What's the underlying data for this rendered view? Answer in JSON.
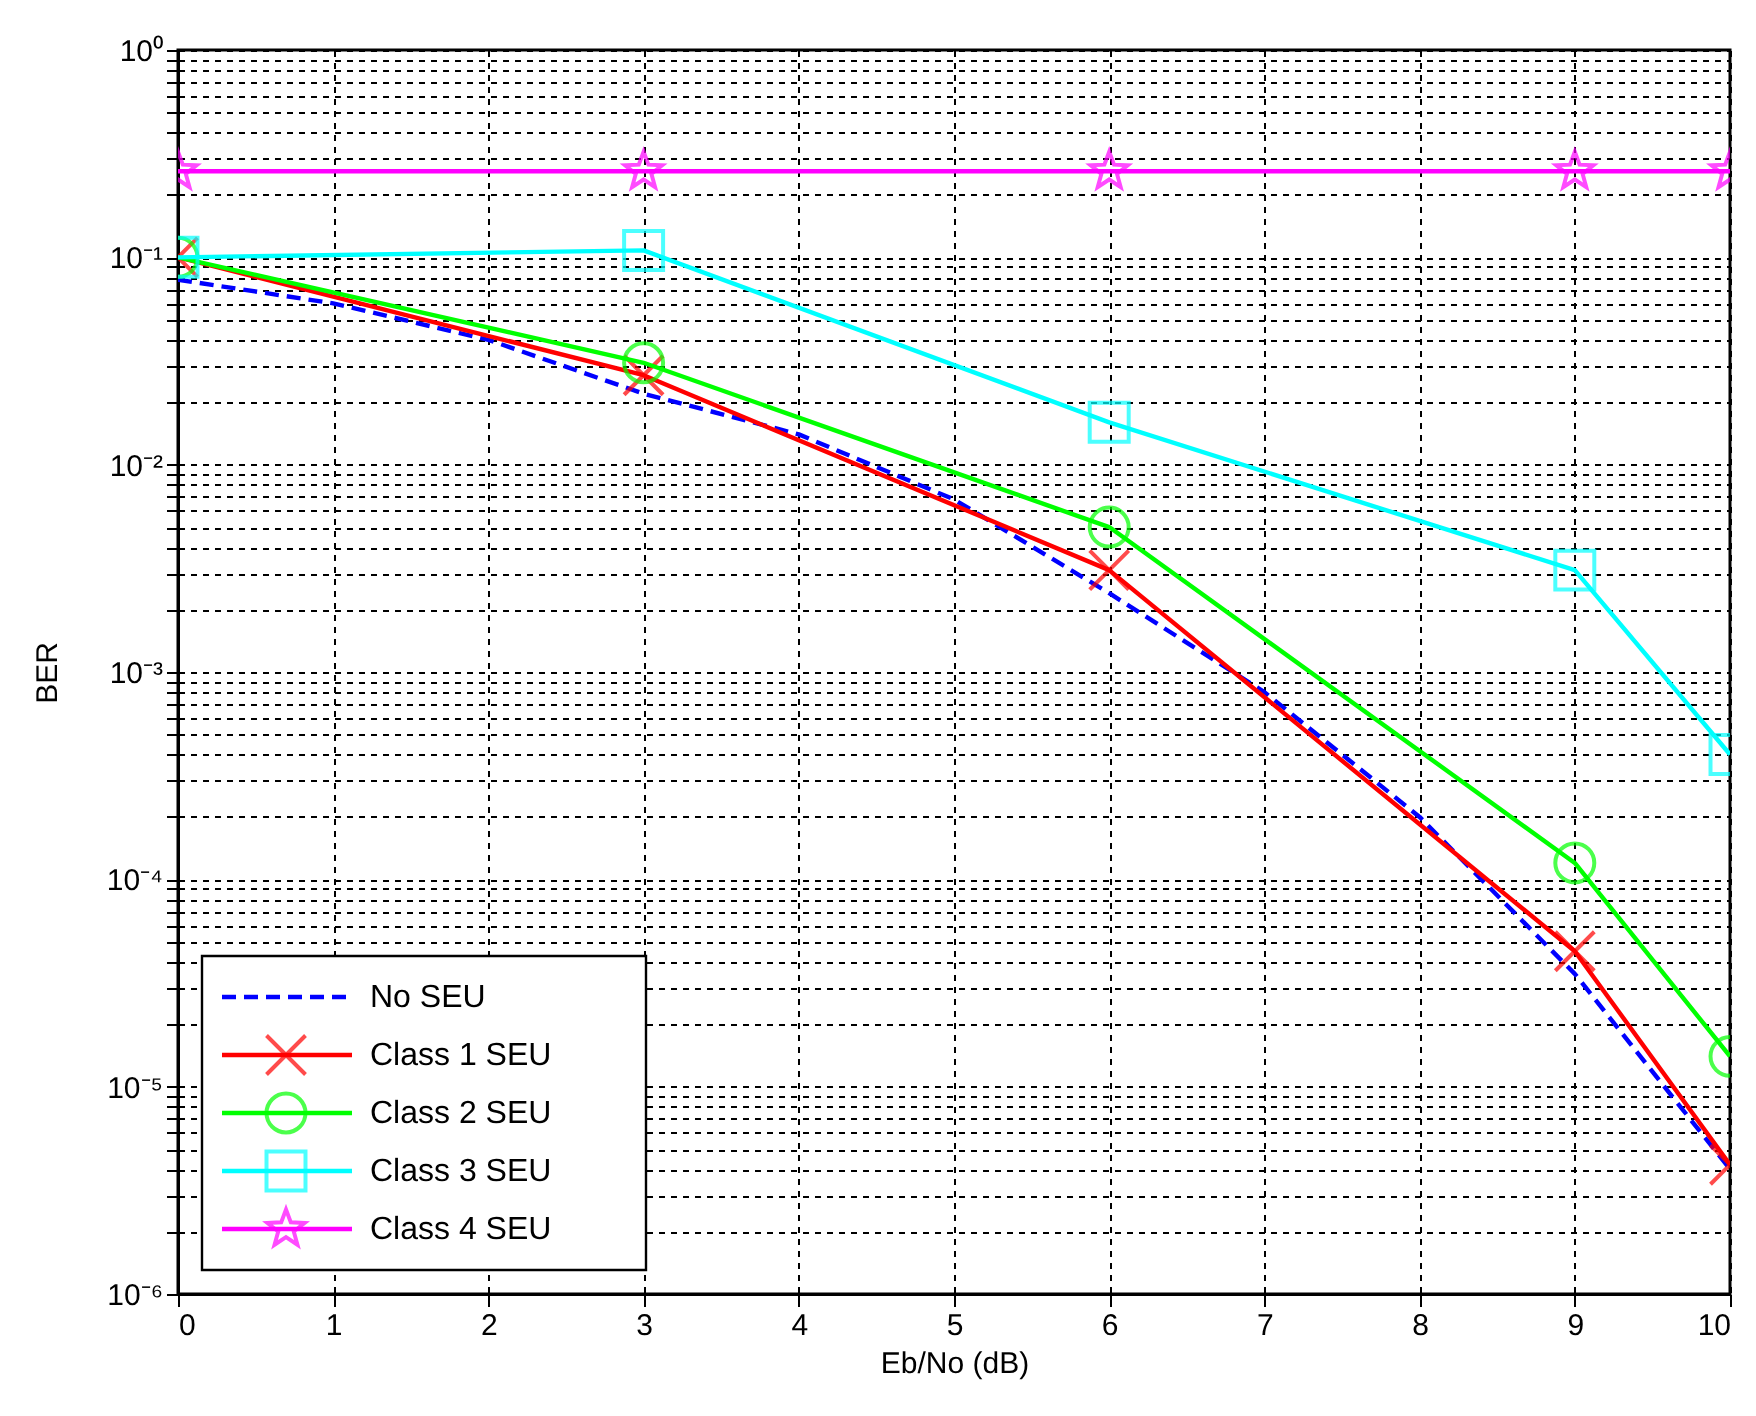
{
  "chart_data": {
    "type": "line",
    "xlabel": "Eb/No (dB)",
    "ylabel": "BER",
    "log": "y",
    "grid": true,
    "legend": "bottom left",
    "xlim": [
      0,
      10
    ],
    "xticks": [
      0,
      1,
      2,
      3,
      4,
      5,
      6,
      7,
      8,
      9,
      10
    ],
    "ylim": [
      1e-06,
      1
    ],
    "yticks": [
      {
        "value": 1e-06,
        "label": "10⁻⁶"
      },
      {
        "value": 2e-06,
        "label": null
      },
      {
        "value": 3e-06,
        "label": null
      },
      {
        "value": 4e-06,
        "label": null
      },
      {
        "value": 5e-06,
        "label": null
      },
      {
        "value": 6e-06,
        "label": null
      },
      {
        "value": 7e-06,
        "label": null
      },
      {
        "value": 8e-06,
        "label": null
      },
      {
        "value": 9e-06,
        "label": null
      },
      {
        "value": 1e-05,
        "label": "10⁻⁵"
      },
      {
        "value": 2e-05,
        "label": null
      },
      {
        "value": 3e-05,
        "label": null
      },
      {
        "value": 4e-05,
        "label": null
      },
      {
        "value": 5e-05,
        "label": null
      },
      {
        "value": 6e-05,
        "label": null
      },
      {
        "value": 7e-05,
        "label": null
      },
      {
        "value": 8e-05,
        "label": null
      },
      {
        "value": 9e-05,
        "label": null
      },
      {
        "value": 0.0001,
        "label": "10⁻⁴"
      },
      {
        "value": 0.0002,
        "label": null
      },
      {
        "value": 0.0003,
        "label": null
      },
      {
        "value": 0.0004,
        "label": null
      },
      {
        "value": 0.0005,
        "label": null
      },
      {
        "value": 0.0006,
        "label": null
      },
      {
        "value": 0.0007,
        "label": null
      },
      {
        "value": 0.0008,
        "label": null
      },
      {
        "value": 0.0009,
        "label": null
      },
      {
        "value": 0.001,
        "label": "10⁻³"
      },
      {
        "value": 0.002,
        "label": null
      },
      {
        "value": 0.003,
        "label": null
      },
      {
        "value": 0.004,
        "label": null
      },
      {
        "value": 0.005,
        "label": null
      },
      {
        "value": 0.006,
        "label": null
      },
      {
        "value": 0.007,
        "label": null
      },
      {
        "value": 0.008,
        "label": null
      },
      {
        "value": 0.009,
        "label": null
      },
      {
        "value": 0.01,
        "label": "10⁻²"
      },
      {
        "value": 0.02,
        "label": null
      },
      {
        "value": 0.03,
        "label": null
      },
      {
        "value": 0.04,
        "label": null
      },
      {
        "value": 0.05,
        "label": null
      },
      {
        "value": 0.06,
        "label": null
      },
      {
        "value": 0.07,
        "label": null
      },
      {
        "value": 0.08,
        "label": null
      },
      {
        "value": 0.09,
        "label": null
      },
      {
        "value": 0.1,
        "label": "10⁻¹"
      },
      {
        "value": 0.2,
        "label": null
      },
      {
        "value": 0.3,
        "label": null
      },
      {
        "value": 0.4,
        "label": null
      },
      {
        "value": 0.5,
        "label": null
      },
      {
        "value": 0.6,
        "label": null
      },
      {
        "value": 0.7,
        "label": null
      },
      {
        "value": 0.8,
        "label": null
      },
      {
        "value": 0.9,
        "label": null
      },
      {
        "value": 1,
        "label": "10⁰"
      }
    ],
    "series": [
      {
        "name": "No SEU",
        "color": "#0000ff",
        "line_style": "dashed",
        "marker": "none",
        "x": [
          0,
          1,
          2,
          3,
          4,
          5,
          6,
          7,
          8,
          9,
          10
        ],
        "values": [
          0.078,
          0.06,
          0.04,
          0.022,
          0.014,
          0.0068,
          0.0024,
          0.0008,
          0.0002,
          3.5e-05,
          4e-06
        ]
      },
      {
        "name": "Class 1 SEU",
        "color": "#ff0000",
        "line_style": "solid",
        "marker": "cross",
        "x": [
          0,
          3,
          6,
          9,
          10
        ],
        "values": [
          0.1,
          0.027,
          0.0031,
          4.5e-05,
          4.2e-06
        ]
      },
      {
        "name": "Class 2 SEU",
        "color": "#00ff00",
        "line_style": "solid",
        "marker": "circle",
        "x": [
          0,
          3,
          6,
          9,
          10
        ],
        "values": [
          0.1,
          0.031,
          0.005,
          0.00012,
          1.4e-05
        ]
      },
      {
        "name": "Class 3 SEU",
        "color": "#00ffff",
        "line_style": "solid",
        "marker": "square",
        "x": [
          0,
          3,
          6,
          9,
          10
        ],
        "values": [
          0.1,
          0.108,
          0.016,
          0.0031,
          0.0004
        ]
      },
      {
        "name": "Class 4 SEU",
        "color": "#ff00ff",
        "line_style": "solid",
        "marker": "star",
        "x": [
          0,
          3,
          6,
          9,
          10
        ],
        "values": [
          0.26,
          0.26,
          0.26,
          0.26,
          0.26
        ]
      }
    ]
  }
}
